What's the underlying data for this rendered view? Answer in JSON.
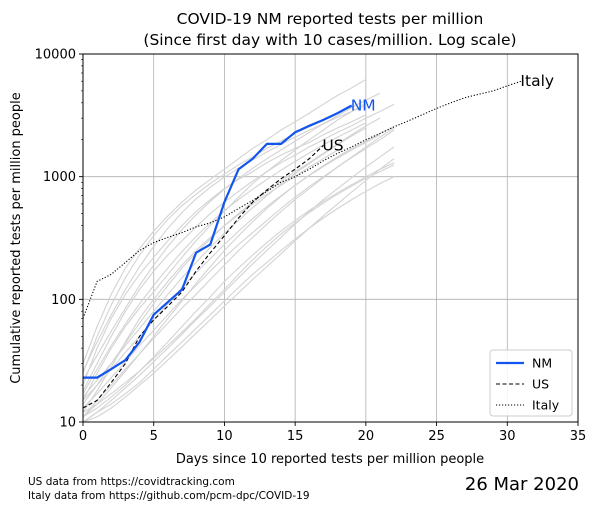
{
  "chart_data": {
    "type": "line",
    "title": "COVID-19 NM reported tests per million",
    "subtitle": "(Since first day with 10 cases/million. Log scale)",
    "xlabel": "Days since 10 reported tests per million people",
    "ylabel": "Cumulative reported tests per million people",
    "xlim": [
      0,
      35
    ],
    "ylim": [
      10,
      10000
    ],
    "yscale": "log",
    "grid": true,
    "x_ticks": [
      0,
      5,
      10,
      15,
      20,
      25,
      30,
      35
    ],
    "y_ticks": [
      10,
      100,
      1000,
      10000
    ],
    "y_tick_labels": [
      "10",
      "100",
      "1000",
      "10000"
    ],
    "legend": {
      "placement": "lower-right",
      "entries": [
        "NM",
        "US",
        "Italy"
      ]
    },
    "series": [
      {
        "name": "NM",
        "color": "#1155ee",
        "style": "solid",
        "x": [
          0,
          1,
          2,
          3,
          4,
          5,
          6,
          7,
          8,
          9,
          10,
          11,
          12,
          13,
          14,
          15,
          16,
          17,
          18,
          19
        ],
        "y": [
          23,
          23,
          27,
          32,
          45,
          75,
          95,
          120,
          240,
          280,
          620,
          1150,
          1400,
          1850,
          1850,
          2300,
          2600,
          2900,
          3300,
          3800
        ]
      },
      {
        "name": "US",
        "color": "#000000",
        "style": "dashed",
        "x": [
          0,
          1,
          2,
          3,
          4,
          5,
          6,
          7,
          8,
          9,
          10,
          11,
          12,
          13,
          14,
          15,
          16,
          17
        ],
        "y": [
          13,
          15,
          21,
          30,
          50,
          68,
          88,
          115,
          170,
          240,
          330,
          460,
          620,
          780,
          960,
          1150,
          1400,
          1800
        ]
      },
      {
        "name": "Italy",
        "color": "#000000",
        "style": "dotted",
        "x": [
          0,
          1,
          2,
          3,
          4,
          5,
          6,
          7,
          8,
          9,
          10,
          11,
          12,
          13,
          14,
          15,
          16,
          17,
          18,
          19,
          20,
          21,
          22,
          23,
          24,
          25,
          26,
          27,
          28,
          29,
          30,
          31
        ],
        "y": [
          70,
          140,
          160,
          200,
          250,
          290,
          320,
          350,
          390,
          420,
          470,
          550,
          640,
          760,
          900,
          1000,
          1150,
          1350,
          1550,
          1750,
          2000,
          2250,
          2550,
          2850,
          3200,
          3600,
          4000,
          4400,
          4700,
          5000,
          5500,
          6000
        ]
      }
    ],
    "background_series": [
      {
        "x": [
          0,
          1,
          2,
          3,
          4,
          5,
          6,
          7,
          8,
          9,
          10,
          11,
          12,
          13,
          14,
          15,
          16,
          17,
          18,
          19,
          20
        ],
        "y": [
          20,
          40,
          70,
          110,
          160,
          220,
          300,
          400,
          520,
          650,
          800,
          950,
          1100,
          1300,
          1500,
          1700,
          1900,
          2200,
          2500,
          2800,
          3200
        ]
      },
      {
        "x": [
          0,
          1,
          2,
          3,
          4,
          5,
          6,
          7,
          8,
          9,
          10,
          11,
          12,
          13,
          14,
          15,
          16,
          17,
          18,
          19,
          20
        ],
        "y": [
          15,
          25,
          40,
          60,
          85,
          115,
          160,
          220,
          300,
          400,
          520,
          680,
          880,
          1100,
          1350,
          1650,
          2000,
          2400,
          2900,
          3400,
          4000
        ]
      },
      {
        "x": [
          0,
          1,
          2,
          3,
          4,
          5,
          6,
          7,
          8,
          9,
          10,
          11,
          12,
          13,
          14,
          15,
          16,
          17,
          18,
          19,
          20
        ],
        "y": [
          30,
          60,
          110,
          180,
          260,
          360,
          480,
          620,
          780,
          950,
          1150,
          1400,
          1700,
          2000,
          2400,
          2800,
          3300,
          3900,
          4600,
          5300,
          6200
        ]
      },
      {
        "x": [
          0,
          1,
          2,
          3,
          4,
          5,
          6,
          7,
          8,
          9,
          10,
          11,
          12,
          13,
          14,
          15,
          16,
          17,
          18
        ],
        "y": [
          12,
          18,
          28,
          45,
          70,
          100,
          140,
          190,
          250,
          320,
          400,
          490,
          600,
          720,
          850,
          1000,
          1200,
          1400,
          1650
        ]
      },
      {
        "x": [
          0,
          1,
          2,
          3,
          4,
          5,
          6,
          7,
          8,
          9,
          10,
          11,
          12,
          13,
          14,
          15,
          16,
          17,
          18,
          19,
          20,
          21,
          22
        ],
        "y": [
          11,
          15,
          20,
          27,
          36,
          48,
          64,
          85,
          110,
          145,
          190,
          250,
          320,
          410,
          520,
          650,
          800,
          980,
          1200,
          1450,
          1750,
          2100,
          2500
        ]
      },
      {
        "x": [
          0,
          1,
          2,
          3,
          4,
          5,
          6,
          7,
          8,
          9,
          10,
          11,
          12,
          13,
          14,
          15,
          16,
          17,
          18,
          19,
          20,
          21,
          22
        ],
        "y": [
          10,
          12,
          15,
          19,
          24,
          31,
          40,
          52,
          68,
          88,
          115,
          150,
          195,
          250,
          320,
          410,
          520,
          650,
          800,
          980,
          1200,
          1450,
          1750
        ]
      },
      {
        "x": [
          0,
          1,
          2,
          3,
          4,
          5,
          6,
          7,
          8,
          9,
          10,
          11,
          12,
          13,
          14,
          15,
          16,
          17,
          18,
          19,
          20,
          21,
          22
        ],
        "y": [
          18,
          30,
          50,
          80,
          120,
          170,
          230,
          300,
          390,
          500,
          620,
          760,
          920,
          1100,
          1300,
          1500,
          1750,
          2000,
          2300,
          2600,
          3000,
          3400,
          3900
        ]
      },
      {
        "x": [
          0,
          1,
          2,
          3,
          4,
          5,
          6,
          7,
          8,
          9,
          10,
          11,
          12,
          13,
          14,
          15,
          16,
          17,
          18,
          19,
          20,
          21
        ],
        "y": [
          25,
          50,
          90,
          150,
          230,
          330,
          450,
          580,
          720,
          880,
          1050,
          1250,
          1450,
          1700,
          1950,
          2250,
          2550,
          2900,
          3300,
          3700,
          4200,
          4800
        ]
      },
      {
        "x": [
          0,
          1,
          2,
          3,
          4,
          5,
          6,
          7,
          8,
          9,
          10,
          11,
          12,
          13,
          14,
          15,
          16,
          17,
          18,
          19,
          20,
          21
        ],
        "y": [
          14,
          20,
          30,
          44,
          64,
          92,
          130,
          180,
          240,
          310,
          400,
          500,
          620,
          760,
          920,
          1100,
          1300,
          1550,
          1850,
          2200,
          2600,
          3000
        ]
      },
      {
        "x": [
          0,
          1,
          2,
          3,
          4,
          5,
          6,
          7,
          8,
          9,
          10,
          11,
          12,
          13,
          14,
          15,
          16,
          17,
          18,
          19,
          20
        ],
        "y": [
          16,
          22,
          30,
          42,
          58,
          80,
          110,
          150,
          200,
          265,
          345,
          440,
          560,
          700,
          870,
          1060,
          1280,
          1530,
          1820,
          2150,
          2500
        ]
      },
      {
        "x": [
          0,
          1,
          2,
          3,
          4,
          5,
          6,
          7,
          8,
          9,
          10,
          11,
          12,
          13,
          14,
          15,
          16,
          17,
          18,
          19,
          20,
          21,
          22
        ],
        "y": [
          10,
          11,
          13,
          16,
          20,
          25,
          32,
          41,
          53,
          68,
          88,
          113,
          145,
          185,
          235,
          300,
          380,
          480,
          600,
          750,
          930,
          1150,
          1400
        ]
      },
      {
        "x": [
          0,
          1,
          2,
          3,
          4,
          5,
          6,
          7,
          8,
          9,
          10,
          11,
          12,
          13,
          14,
          15,
          16,
          17,
          18,
          19,
          20,
          21,
          22
        ],
        "y": [
          13,
          17,
          23,
          31,
          42,
          56,
          75,
          100,
          130,
          170,
          220,
          280,
          350,
          440,
          550,
          680,
          830,
          1000,
          1200,
          1430,
          1700,
          2000,
          2400
        ]
      },
      {
        "x": [
          0,
          1,
          2,
          3,
          4,
          5,
          6,
          7,
          8,
          9,
          10,
          11,
          12,
          13,
          14,
          15,
          16,
          17,
          18,
          19,
          20
        ],
        "y": [
          22,
          35,
          55,
          85,
          130,
          190,
          270,
          370,
          490,
          630,
          790,
          970,
          1170,
          1400,
          1650,
          1950,
          2300,
          2700,
          3150,
          3650,
          4200
        ]
      },
      {
        "x": [
          0,
          1,
          2,
          3,
          4,
          5,
          6,
          7,
          8,
          9,
          10,
          11,
          12,
          13,
          14,
          15,
          16,
          17,
          18,
          19,
          20,
          21,
          22
        ],
        "y": [
          11,
          13,
          16,
          20,
          26,
          34,
          45,
          60,
          80,
          105,
          140,
          180,
          230,
          290,
          360,
          440,
          530,
          630,
          740,
          860,
          1000,
          1150,
          1300
        ]
      },
      {
        "x": [
          0,
          1,
          2,
          3,
          4,
          5,
          6,
          7,
          8,
          9,
          10,
          11,
          12,
          13,
          14,
          15,
          16,
          17,
          18,
          19,
          20,
          21,
          22
        ],
        "y": [
          12,
          14,
          17,
          21,
          26,
          33,
          42,
          54,
          70,
          92,
          120,
          160,
          210,
          270,
          340,
          420,
          510,
          610,
          720,
          840,
          970,
          1100,
          1250
        ]
      },
      {
        "x": [
          0,
          1,
          2,
          3,
          4,
          5,
          6,
          7,
          8,
          9,
          10,
          11,
          12,
          13,
          14,
          15,
          16,
          17,
          18,
          19,
          20
        ],
        "y": [
          17,
          27,
          42,
          63,
          92,
          130,
          180,
          245,
          325,
          420,
          530,
          650,
          790,
          950,
          1130,
          1330,
          1560,
          1820,
          2100,
          2400,
          2750
        ]
      },
      {
        "x": [
          0,
          1,
          2,
          3,
          4,
          5,
          6,
          7,
          8,
          9,
          10,
          11,
          12,
          13,
          14,
          15,
          16,
          17,
          18,
          19,
          20,
          21,
          22
        ],
        "y": [
          10,
          12,
          14,
          17,
          21,
          27,
          35,
          45,
          58,
          75,
          97,
          125,
          160,
          200,
          250,
          310,
          380,
          460,
          550,
          650,
          760,
          880,
          1000
        ]
      },
      {
        "x": [
          0,
          1,
          2,
          3,
          4,
          5,
          6,
          7,
          8,
          9,
          10,
          11,
          12,
          13,
          14,
          15,
          16,
          17,
          18,
          19,
          20
        ],
        "y": [
          26,
          45,
          75,
          120,
          185,
          270,
          380,
          510,
          660,
          820,
          990,
          1170,
          1370,
          1590,
          1830,
          2100,
          2400,
          2700,
          3050,
          3400,
          3800
        ]
      },
      {
        "x": [
          0,
          1,
          2,
          3,
          4,
          5,
          6,
          7,
          8,
          9,
          10,
          11,
          12,
          13,
          14,
          15,
          16,
          17,
          18,
          19,
          20,
          21
        ],
        "y": [
          15,
          20,
          27,
          37,
          50,
          68,
          92,
          125,
          165,
          215,
          280,
          360,
          455,
          570,
          700,
          850,
          1020,
          1210,
          1420,
          1650,
          1900,
          2200
        ]
      },
      {
        "x": [
          0,
          1,
          2,
          3,
          4,
          5,
          6,
          7,
          8,
          9,
          10,
          11,
          12,
          13,
          14,
          15,
          16,
          17,
          18,
          19,
          20,
          21,
          22
        ],
        "y": [
          11,
          14,
          19,
          26,
          36,
          50,
          70,
          97,
          135,
          185,
          250,
          330,
          430,
          550,
          690,
          850,
          1030,
          1230,
          1450,
          1700,
          1950,
          2250,
          2550
        ]
      }
    ]
  },
  "source_notes": [
    "US data from https://covidtracking.com",
    "Italy data from https://github.com/pcm-dpc/COVID-19"
  ],
  "date_stamp": "26 Mar 2020"
}
